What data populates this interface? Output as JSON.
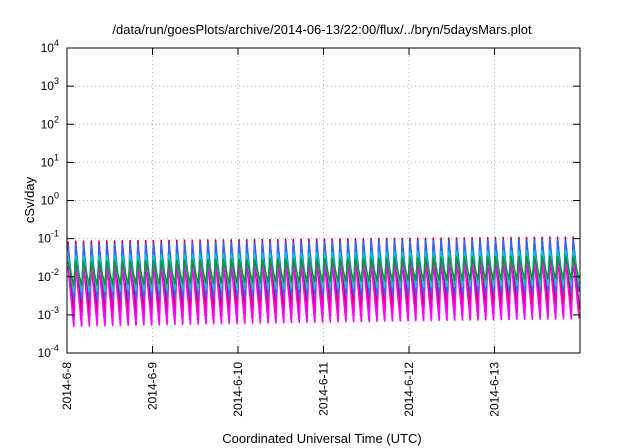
{
  "chart_data": {
    "type": "line",
    "title": "/data/run/goesPlots/archive/2014-06-13/22:00/flux/../bryn/5daysMars.plot",
    "xlabel": "Coordinated Universal Time (UTC)",
    "ylabel": "cSv/day",
    "y_scale": "log",
    "ylim": [
      0.0001,
      10000
    ],
    "xlim": [
      "2014-06-08",
      "2014-06-14"
    ],
    "x_ticks": [
      "2014-6-8",
      "2014-6-9",
      "2014-6-10",
      "2014-6-11",
      "2014-6-12",
      "2014-6-13"
    ],
    "y_ticks": [
      {
        "base": "10",
        "exp": "4"
      },
      {
        "base": "10",
        "exp": "3"
      },
      {
        "base": "10",
        "exp": "2"
      },
      {
        "base": "10",
        "exp": "1"
      },
      {
        "base": "10",
        "exp": "0"
      },
      {
        "base": "10",
        "exp": "-1"
      },
      {
        "base": "10",
        "exp": "-2"
      },
      {
        "base": "10",
        "exp": "-3"
      },
      {
        "base": "10",
        "exp": "-4"
      }
    ],
    "grid": true,
    "series_note": "dense sawtooth traces, approx. 11 cycles per day",
    "cycles_per_day": 11,
    "series": [
      {
        "color": "#cc0033",
        "peak_low": 0.085,
        "peak_high": 0.11,
        "trough_low": 0.0009,
        "trough_high": 0.0014
      },
      {
        "color": "#ff00ff",
        "peak_low": 0.02,
        "peak_high": 0.03,
        "trough_low": 0.0005,
        "trough_high": 0.0008
      },
      {
        "color": "#3366ff",
        "peak_low": 0.07,
        "peak_high": 0.095,
        "trough_low": 0.0025,
        "trough_high": 0.004
      },
      {
        "color": "#00cccc",
        "peak_low": 0.035,
        "peak_high": 0.05,
        "trough_low": 0.004,
        "trough_high": 0.006
      },
      {
        "color": "#009933",
        "peak_low": 0.025,
        "peak_high": 0.035,
        "trough_low": 0.006,
        "trough_high": 0.009
      }
    ]
  }
}
